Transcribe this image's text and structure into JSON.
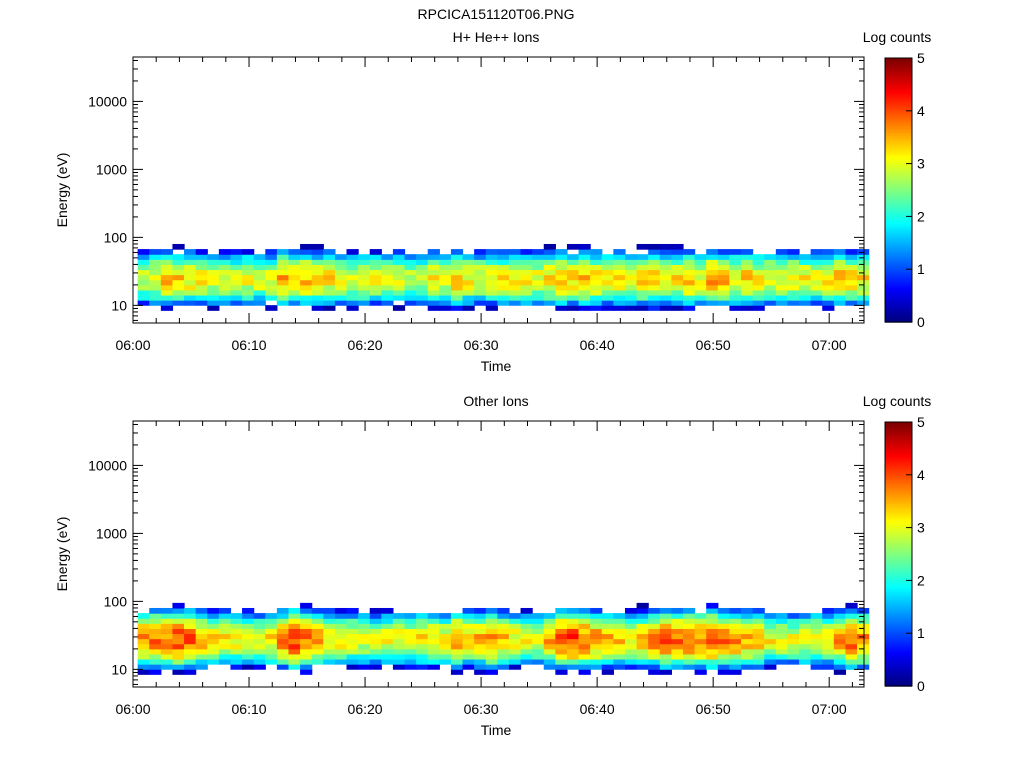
{
  "figure_title": "RPCICA151120T06.PNG",
  "chart_data": [
    {
      "type": "heatmap",
      "title": "H+ He++ Ions",
      "xlabel": "Time",
      "ylabel": "Energy (eV)",
      "x_ticks": [
        "06:00",
        "06:10",
        "06:20",
        "06:30",
        "06:40",
        "06:50",
        "07:00"
      ],
      "x_range": [
        "06:00",
        "07:03"
      ],
      "y_scale": "log",
      "y_ticks": [
        10,
        100,
        1000,
        10000
      ],
      "y_tick_labels": [
        "10",
        "100",
        "1000",
        "10000"
      ],
      "y_range": [
        5.5,
        45000
      ],
      "colorbar": {
        "label": "Log counts",
        "range": [
          0,
          5
        ],
        "ticks": [
          "0",
          "1",
          "2",
          "3",
          "4",
          "5"
        ]
      },
      "band": {
        "energy_range_eV": [
          6,
          95
        ],
        "peak_energy_eV": 25,
        "peak_log_counts": [
          2.9,
          3.1,
          3.4,
          3.3,
          3.2,
          3.1,
          3.0,
          3.0,
          2.9,
          3.0,
          3.0,
          3.0,
          3.5,
          3.3,
          3.4,
          3.2,
          3.2,
          3.0,
          3.0,
          3.1,
          3.0,
          2.9,
          2.9,
          2.9,
          2.9,
          3.1,
          3.0,
          3.4,
          3.1,
          3.0,
          3.1,
          3.1,
          3.1,
          3.2,
          3.0,
          3.3,
          3.4,
          3.3,
          3.4,
          3.3,
          3.1,
          3.2,
          3.1,
          3.3,
          3.3,
          3.3,
          3.2,
          3.4,
          3.1,
          3.6,
          3.5,
          3.2,
          3.3,
          3.1,
          3.1,
          3.0,
          3.2,
          3.1,
          3.0,
          3.1,
          3.4,
          3.3,
          3.2
        ]
      }
    },
    {
      "type": "heatmap",
      "title": "Other Ions",
      "xlabel": "Time",
      "ylabel": "Energy (eV)",
      "x_ticks": [
        "06:00",
        "06:10",
        "06:20",
        "06:30",
        "06:40",
        "06:50",
        "07:00"
      ],
      "x_range": [
        "06:00",
        "07:03"
      ],
      "y_scale": "log",
      "y_ticks": [
        10,
        100,
        1000,
        10000
      ],
      "y_tick_labels": [
        "10",
        "100",
        "1000",
        "10000"
      ],
      "y_range": [
        5.5,
        45000
      ],
      "colorbar": {
        "label": "Log counts",
        "range": [
          0,
          5
        ],
        "ticks": [
          "0",
          "1",
          "2",
          "3",
          "4",
          "5"
        ]
      },
      "band": {
        "energy_range_eV": [
          6,
          95
        ],
        "peak_energy_eV": 28,
        "peak_log_counts": [
          3.6,
          3.8,
          3.7,
          4.0,
          3.9,
          3.5,
          3.4,
          3.2,
          3.1,
          3.0,
          3.1,
          3.2,
          3.7,
          4.1,
          3.8,
          3.5,
          3.3,
          3.3,
          3.1,
          3.0,
          3.0,
          3.0,
          3.1,
          3.1,
          3.2,
          3.2,
          3.1,
          3.7,
          3.3,
          3.5,
          3.8,
          3.4,
          3.1,
          3.1,
          3.1,
          3.5,
          3.9,
          4.1,
          3.8,
          3.6,
          3.5,
          3.4,
          3.2,
          3.4,
          3.7,
          3.9,
          3.8,
          3.9,
          3.7,
          4.0,
          3.8,
          3.7,
          3.5,
          3.4,
          3.1,
          3.0,
          3.0,
          3.1,
          3.2,
          3.2,
          3.6,
          3.9,
          3.7
        ]
      }
    }
  ]
}
